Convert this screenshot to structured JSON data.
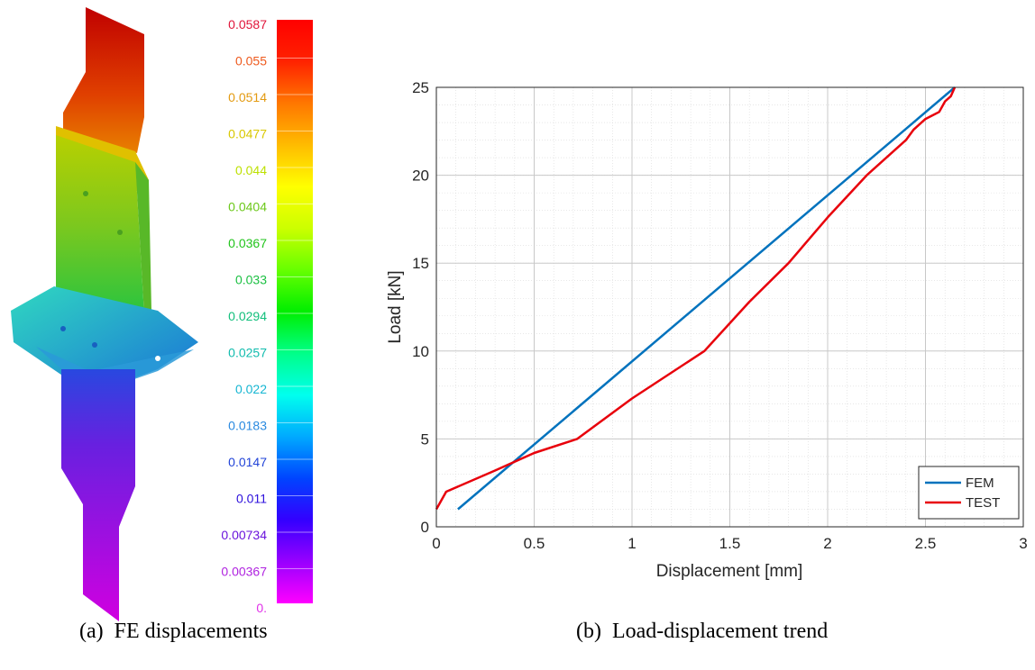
{
  "captions": {
    "left": "(a)  FE displacements",
    "right": "(b)  Load-displacement trend"
  },
  "colorbar": {
    "labels": [
      "0.0587",
      "0.055",
      "0.0514",
      "0.0477",
      "0.044",
      "0.0404",
      "0.0367",
      "0.033",
      "0.0294",
      "0.0257",
      "0.022",
      "0.0183",
      "0.0147",
      "0.011",
      "0.00734",
      "0.00367",
      "0."
    ],
    "label_colors": [
      "#e0153a",
      "#ee5a1e",
      "#e39a10",
      "#d9c800",
      "#bde000",
      "#6cc81a",
      "#22c41c",
      "#1cc043",
      "#12bf7c",
      "#12bcae",
      "#16b6d2",
      "#2a8ae0",
      "#2244d8",
      "#2d10dc",
      "#6a14dc",
      "#b024e0",
      "#e030e8"
    ],
    "gradient": [
      "#ff00ff",
      "#9900ff",
      "#3300ff",
      "#0044ff",
      "#00aaff",
      "#00ffee",
      "#00ff88",
      "#00ee00",
      "#66ff00",
      "#ccff00",
      "#ffff00",
      "#ffbb00",
      "#ff7700",
      "#ff2200",
      "#ff0000"
    ]
  },
  "fe_model": {
    "top_color": "#c80000",
    "mid_color": "#6cc41a",
    "band_color": "#d8c000",
    "base_color": "#22b8b0",
    "bottom_color": "#b000d0"
  },
  "chart_data": {
    "type": "line",
    "xlabel": "Displacement [mm]",
    "ylabel": "Load [kN]",
    "xlim": [
      0,
      3
    ],
    "ylim": [
      0,
      25
    ],
    "xticks": [
      0,
      0.5,
      1,
      1.5,
      2,
      2.5,
      3
    ],
    "xtick_labels": [
      "0",
      "0.5",
      "1",
      "1.5",
      "2",
      "2.5",
      "3"
    ],
    "yticks": [
      0,
      5,
      10,
      15,
      20,
      25
    ],
    "ytick_labels": [
      "0",
      "5",
      "10",
      "15",
      "20",
      "25"
    ],
    "grid": true,
    "minor_grid": true,
    "legend_position": "bottom-right",
    "series": [
      {
        "name": "FEM",
        "color": "#0072bd",
        "x": [
          0.11,
          2.65
        ],
        "y": [
          1.0,
          25.0
        ]
      },
      {
        "name": "TEST",
        "color": "#e8000b",
        "x": [
          0,
          0.05,
          0.3,
          0.5,
          0.72,
          1.0,
          1.37,
          1.6,
          1.8,
          2.0,
          2.2,
          2.4,
          2.44,
          2.5,
          2.57,
          2.6,
          2.63,
          2.65
        ],
        "y": [
          1.0,
          2.0,
          3.2,
          4.2,
          5.0,
          7.3,
          10.0,
          12.8,
          15.0,
          17.6,
          20.0,
          22.0,
          22.6,
          23.2,
          23.6,
          24.2,
          24.5,
          25.0
        ]
      }
    ]
  }
}
